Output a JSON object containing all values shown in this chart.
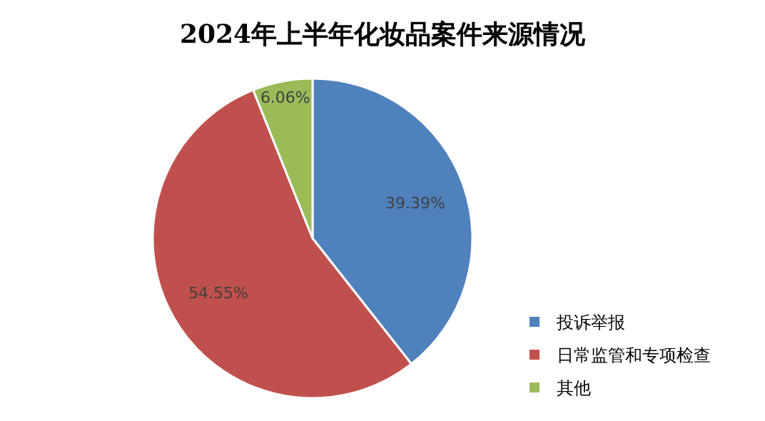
{
  "chart_data": {
    "type": "pie",
    "title": "2024年上半年化妆品案件来源情况",
    "categories": [
      "投诉举报",
      "日常监管和专项检查",
      "其他"
    ],
    "values": [
      39.39,
      54.55,
      6.06
    ],
    "colors": [
      "#4f81bd",
      "#c0504d",
      "#9bbb59"
    ],
    "value_labels": [
      "39.39%",
      "54.55%",
      "6.06%"
    ],
    "legend": "bottom right"
  }
}
